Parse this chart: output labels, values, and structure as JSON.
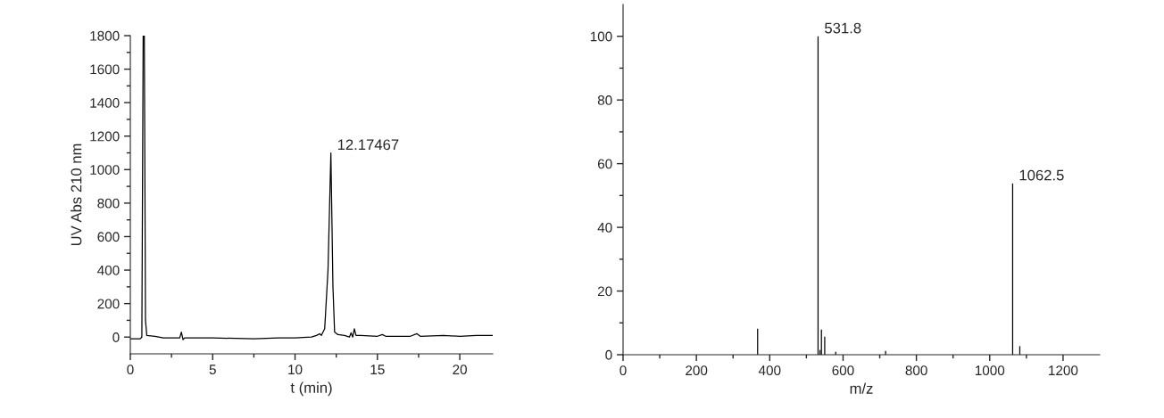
{
  "chart_data": [
    {
      "type": "line",
      "xlabel": "t (min)",
      "ylabel": "UV Abs 210 nm",
      "xlim": [
        0,
        22
      ],
      "ylim": [
        -100,
        1800
      ],
      "xticks": [
        0,
        {
          "value": 2.5,
          "label": null
        },
        5,
        {
          "value": 7.5,
          "label": null
        },
        10,
        {
          "value": 12.5,
          "label": null
        },
        15,
        {
          "value": 17.5,
          "label": null
        },
        20
      ],
      "yticks": [
        0,
        {
          "value": 100,
          "label": null
        },
        200,
        {
          "value": 300,
          "label": null
        },
        400,
        {
          "value": 500,
          "label": null
        },
        600,
        {
          "value": 700,
          "label": null
        },
        800,
        {
          "value": 900,
          "label": null
        },
        1000,
        {
          "value": 1100,
          "label": null
        },
        1200,
        {
          "value": 1300,
          "label": null
        },
        1400,
        {
          "value": 1500,
          "label": null
        },
        1600,
        {
          "value": 1700,
          "label": null
        },
        1800
      ],
      "x": [
        0,
        0.6,
        0.7,
        0.78,
        0.85,
        0.92,
        1.0,
        1.5,
        2,
        3.0,
        3.1,
        3.2,
        3.3,
        5,
        7.5,
        9,
        10,
        11,
        11.3,
        11.5,
        11.6,
        11.8,
        12.0,
        12.17467,
        12.3,
        12.4,
        12.6,
        13,
        13.3,
        13.4,
        13.5,
        13.6,
        13.7,
        14,
        15,
        15.3,
        15.5,
        17,
        17.4,
        17.6,
        19,
        20,
        21,
        22
      ],
      "series": [
        {
          "color": "#000000",
          "values": [
            -10,
            -10,
            0,
            1800,
            1800,
            100,
            10,
            5,
            -5,
            -5,
            30,
            -15,
            -5,
            -5,
            -10,
            -5,
            -5,
            0,
            10,
            20,
            10,
            50,
            400,
            1100,
            300,
            30,
            15,
            10,
            0,
            25,
            0,
            50,
            10,
            10,
            5,
            15,
            5,
            5,
            20,
            5,
            10,
            5,
            10,
            10
          ]
        }
      ],
      "annotations": [
        {
          "text": "12.17467",
          "x": 12.17467,
          "y": 1100
        }
      ]
    },
    {
      "type": "bar",
      "xlabel": "m/z",
      "xlim": [
        0,
        1300
      ],
      "ylim": [
        0,
        110
      ],
      "xticks": [
        0,
        {
          "value": 100,
          "label": null
        },
        200,
        {
          "value": 300,
          "label": null
        },
        400,
        {
          "value": 500,
          "label": null
        },
        600,
        {
          "value": 700,
          "label": null
        },
        800,
        {
          "value": 900,
          "label": null
        },
        1000,
        {
          "value": 1100,
          "label": null
        },
        1200
      ],
      "yticks": [
        0,
        {
          "value": 10,
          "label": null
        },
        20,
        {
          "value": 30,
          "label": null
        },
        40,
        {
          "value": 50,
          "label": null
        },
        60,
        {
          "value": 70,
          "label": null
        },
        80,
        {
          "value": 90,
          "label": null
        },
        100
      ],
      "x": [
        367,
        531.8,
        537,
        541,
        550,
        580,
        716,
        1062.5,
        1082
      ],
      "series": [
        {
          "color": "#000000",
          "values": [
            8.2,
            100,
            1.5,
            7.9,
            5.7,
            0.9,
            1.2,
            53.8,
            2.7
          ]
        }
      ],
      "annotations": [
        {
          "text": "531.8",
          "x": 531.8,
          "y": 100
        },
        {
          "text": "1062.5",
          "x": 1062.5,
          "y": 53.8
        }
      ]
    }
  ]
}
